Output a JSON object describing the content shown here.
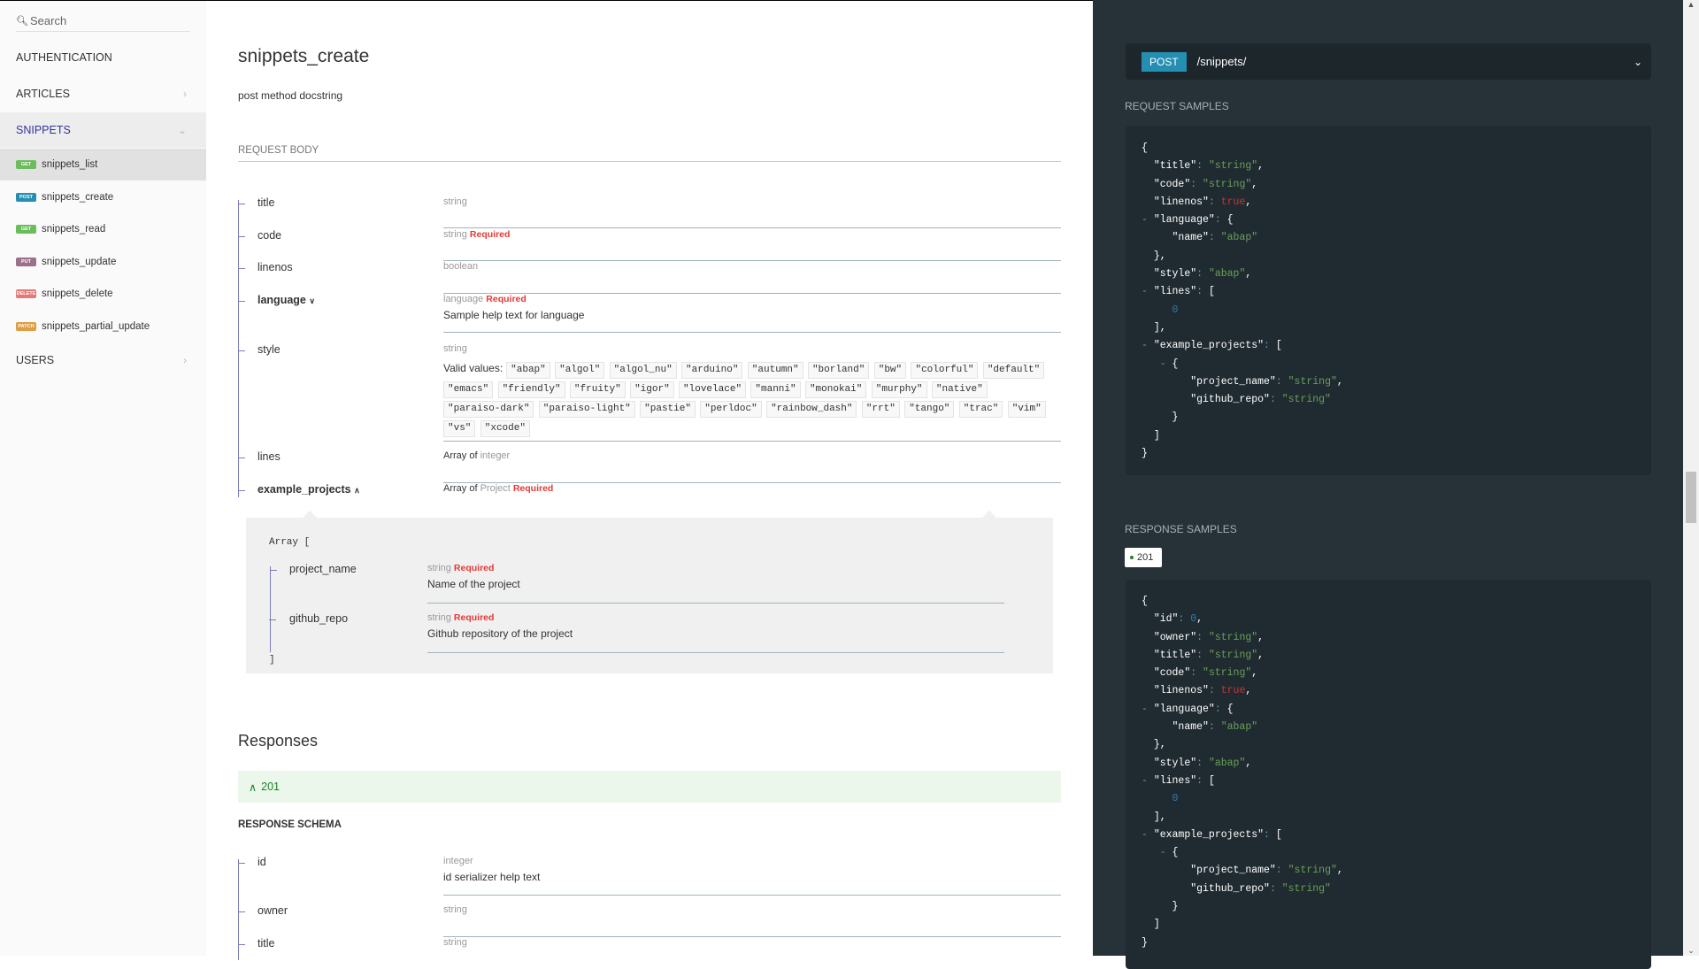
{
  "sidebar": {
    "search_placeholder": "Search",
    "groups": [
      "AUTHENTICATION",
      "ARTICLES",
      "SNIPPETS",
      "USERS"
    ],
    "operations": [
      {
        "method": "GET",
        "label": "snippets_list",
        "color": "#6bbd5b"
      },
      {
        "method": "POST",
        "label": "snippets_create",
        "color": "#248fb2"
      },
      {
        "method": "GET",
        "label": "snippets_read",
        "color": "#6bbd5b"
      },
      {
        "method": "PUT",
        "label": "snippets_update",
        "color": "#9b708b"
      },
      {
        "method": "DELETE",
        "label": "snippets_delete",
        "color": "#e27a7a"
      },
      {
        "method": "PATCH",
        "label": "snippets_partial_update",
        "color": "#e09d43"
      }
    ]
  },
  "main": {
    "title": "snippets_create",
    "description": "post method docstring",
    "request_body_label": "REQUEST BODY",
    "required_label": "Required",
    "fields": {
      "title": {
        "name": "title",
        "type": "string"
      },
      "code": {
        "name": "code",
        "type": "string"
      },
      "linenos": {
        "name": "linenos",
        "type": "boolean"
      },
      "language": {
        "name": "language",
        "type": "language",
        "description": "Sample help text for language"
      },
      "style": {
        "name": "style",
        "type": "string",
        "valid_values_label": "Valid values:",
        "valid_values": [
          "\"abap\"",
          "\"algol\"",
          "\"algol_nu\"",
          "\"arduino\"",
          "\"autumn\"",
          "\"borland\"",
          "\"bw\"",
          "\"colorful\"",
          "\"default\"",
          "\"emacs\"",
          "\"friendly\"",
          "\"fruity\"",
          "\"igor\"",
          "\"lovelace\"",
          "\"manni\"",
          "\"monokai\"",
          "\"murphy\"",
          "\"native\"",
          "\"paraiso-dark\"",
          "\"paraiso-light\"",
          "\"pastie\"",
          "\"perldoc\"",
          "\"rainbow_dash\"",
          "\"rrt\"",
          "\"tango\"",
          "\"trac\"",
          "\"vim\"",
          "\"vs\"",
          "\"xcode\""
        ]
      },
      "lines": {
        "name": "lines",
        "array_of": "Array of",
        "type": "integer"
      },
      "example_projects": {
        "name": "example_projects",
        "array_of": "Array of",
        "type": "Project"
      }
    },
    "nested": {
      "open": "Array [",
      "close": "]",
      "project_name": {
        "name": "project_name",
        "type": "string",
        "description": "Name of the project"
      },
      "github_repo": {
        "name": "github_repo",
        "type": "string",
        "description": "Github repository of the project"
      }
    },
    "responses_title": "Responses",
    "response_code": "201",
    "response_schema_label": "RESPONSE SCHEMA",
    "response_fields": {
      "id": {
        "name": "id",
        "type": "integer",
        "description": "id serializer help text"
      },
      "owner": {
        "name": "owner",
        "type": "string"
      },
      "title": {
        "name": "title",
        "type": "string"
      }
    }
  },
  "right": {
    "method": "POST",
    "path": "/snippets/",
    "request_samples_label": "REQUEST SAMPLES",
    "response_samples_label": "RESPONSE SAMPLES",
    "response_tab": "201",
    "request_code": [
      [
        [
          "p",
          "{"
        ]
      ],
      [
        [
          "i",
          "  "
        ],
        [
          "k",
          "\"title\""
        ],
        [
          "col",
          ": "
        ],
        [
          "str",
          "\"string\""
        ],
        [
          "p",
          ","
        ]
      ],
      [
        [
          "i",
          "  "
        ],
        [
          "k",
          "\"code\""
        ],
        [
          "col",
          ": "
        ],
        [
          "str",
          "\"string\""
        ],
        [
          "p",
          ","
        ]
      ],
      [
        [
          "i",
          "  "
        ],
        [
          "k",
          "\"linenos\""
        ],
        [
          "col",
          ": "
        ],
        [
          "bool",
          "true"
        ],
        [
          "p",
          ","
        ]
      ],
      [
        [
          "i",
          "- "
        ],
        [
          "k",
          "\"language\""
        ],
        [
          "col",
          ": "
        ],
        [
          "p",
          "{"
        ]
      ],
      [
        [
          "i",
          "     "
        ],
        [
          "k",
          "\"name\""
        ],
        [
          "col",
          ": "
        ],
        [
          "str",
          "\"abap\""
        ]
      ],
      [
        [
          "i",
          "  "
        ],
        [
          "p",
          "},"
        ]
      ],
      [
        [
          "i",
          "  "
        ],
        [
          "k",
          "\"style\""
        ],
        [
          "col",
          ": "
        ],
        [
          "str",
          "\"abap\""
        ],
        [
          "p",
          ","
        ]
      ],
      [
        [
          "i",
          "- "
        ],
        [
          "k",
          "\"lines\""
        ],
        [
          "col",
          ": "
        ],
        [
          "p",
          "["
        ]
      ],
      [
        [
          "i",
          "     "
        ],
        [
          "num",
          "0"
        ]
      ],
      [
        [
          "i",
          "  "
        ],
        [
          "p",
          "],"
        ]
      ],
      [
        [
          "i",
          "- "
        ],
        [
          "k",
          "\"example_projects\""
        ],
        [
          "col",
          ": "
        ],
        [
          "p",
          "["
        ]
      ],
      [
        [
          "i",
          "   - "
        ],
        [
          "p",
          "{"
        ]
      ],
      [
        [
          "i",
          "        "
        ],
        [
          "k",
          "\"project_name\""
        ],
        [
          "col",
          ": "
        ],
        [
          "str",
          "\"string\""
        ],
        [
          "p",
          ","
        ]
      ],
      [
        [
          "i",
          "        "
        ],
        [
          "k",
          "\"github_repo\""
        ],
        [
          "col",
          ": "
        ],
        [
          "str",
          "\"string\""
        ]
      ],
      [
        [
          "i",
          "     "
        ],
        [
          "p",
          "}"
        ]
      ],
      [
        [
          "i",
          "  "
        ],
        [
          "p",
          "]"
        ]
      ],
      [
        [
          "p",
          "}"
        ]
      ]
    ],
    "response_code_lines": [
      [
        [
          "p",
          "{"
        ]
      ],
      [
        [
          "i",
          "  "
        ],
        [
          "k",
          "\"id\""
        ],
        [
          "col",
          ": "
        ],
        [
          "num",
          "0"
        ],
        [
          "p",
          ","
        ]
      ],
      [
        [
          "i",
          "  "
        ],
        [
          "k",
          "\"owner\""
        ],
        [
          "col",
          ": "
        ],
        [
          "str",
          "\"string\""
        ],
        [
          "p",
          ","
        ]
      ],
      [
        [
          "i",
          "  "
        ],
        [
          "k",
          "\"title\""
        ],
        [
          "col",
          ": "
        ],
        [
          "str",
          "\"string\""
        ],
        [
          "p",
          ","
        ]
      ],
      [
        [
          "i",
          "  "
        ],
        [
          "k",
          "\"code\""
        ],
        [
          "col",
          ": "
        ],
        [
          "str",
          "\"string\""
        ],
        [
          "p",
          ","
        ]
      ],
      [
        [
          "i",
          "  "
        ],
        [
          "k",
          "\"linenos\""
        ],
        [
          "col",
          ": "
        ],
        [
          "bool",
          "true"
        ],
        [
          "p",
          ","
        ]
      ],
      [
        [
          "i",
          "- "
        ],
        [
          "k",
          "\"language\""
        ],
        [
          "col",
          ": "
        ],
        [
          "p",
          "{"
        ]
      ],
      [
        [
          "i",
          "     "
        ],
        [
          "k",
          "\"name\""
        ],
        [
          "col",
          ": "
        ],
        [
          "str",
          "\"abap\""
        ]
      ],
      [
        [
          "i",
          "  "
        ],
        [
          "p",
          "},"
        ]
      ],
      [
        [
          "i",
          "  "
        ],
        [
          "k",
          "\"style\""
        ],
        [
          "col",
          ": "
        ],
        [
          "str",
          "\"abap\""
        ],
        [
          "p",
          ","
        ]
      ],
      [
        [
          "i",
          "- "
        ],
        [
          "k",
          "\"lines\""
        ],
        [
          "col",
          ": "
        ],
        [
          "p",
          "["
        ]
      ],
      [
        [
          "i",
          "     "
        ],
        [
          "num",
          "0"
        ]
      ],
      [
        [
          "i",
          "  "
        ],
        [
          "p",
          "],"
        ]
      ],
      [
        [
          "i",
          "- "
        ],
        [
          "k",
          "\"example_projects\""
        ],
        [
          "col",
          ": "
        ],
        [
          "p",
          "["
        ]
      ],
      [
        [
          "i",
          "   - "
        ],
        [
          "p",
          "{"
        ]
      ],
      [
        [
          "i",
          "        "
        ],
        [
          "k",
          "\"project_name\""
        ],
        [
          "col",
          ": "
        ],
        [
          "str",
          "\"string\""
        ],
        [
          "p",
          ","
        ]
      ],
      [
        [
          "i",
          "        "
        ],
        [
          "k",
          "\"github_repo\""
        ],
        [
          "col",
          ": "
        ],
        [
          "str",
          "\"string\""
        ]
      ],
      [
        [
          "i",
          "     "
        ],
        [
          "p",
          "}"
        ]
      ],
      [
        [
          "i",
          "  "
        ],
        [
          "p",
          "]"
        ]
      ],
      [
        [
          "p",
          "}"
        ]
      ]
    ]
  }
}
